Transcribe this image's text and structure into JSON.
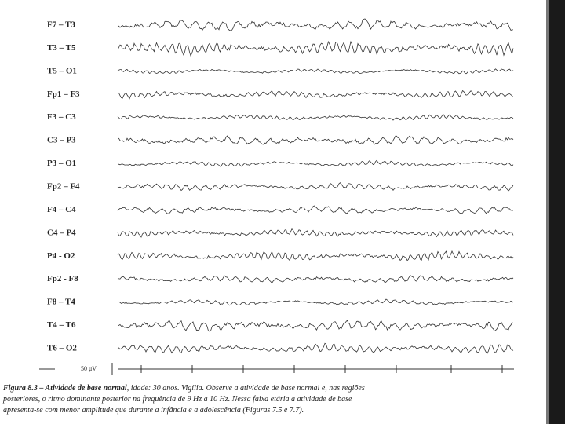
{
  "figure": {
    "channels": [
      "F7 – T3",
      "T3 – T5",
      "T5 – O1",
      "Fp1 – F3",
      "F3 – C3",
      "C3 – P3",
      "P3 – O1",
      "Fp2 – F4",
      "F4 – C4",
      "C4 – P4",
      "P4 - O2",
      "Fp2 - F8",
      "F8 – T4",
      "T4 – T6",
      "T6 – O2"
    ],
    "scale_label": "50 μV",
    "caption": {
      "label": "Figura 8.3 – Atividade de base normal",
      "lines": [
        ", idade: 30 anos. Vigília. Observe a atividade de base normal e, nas regiões",
        "posteriores, o ritmo dominante posterior na frequência de 9 Hz a 10 Hz. Nessa faixa etária a atividade de base",
        "apresenta-se com menor amplitude que durante a infância e a adolescência (Figuras 7.5 e 7.7)."
      ]
    }
  }
}
